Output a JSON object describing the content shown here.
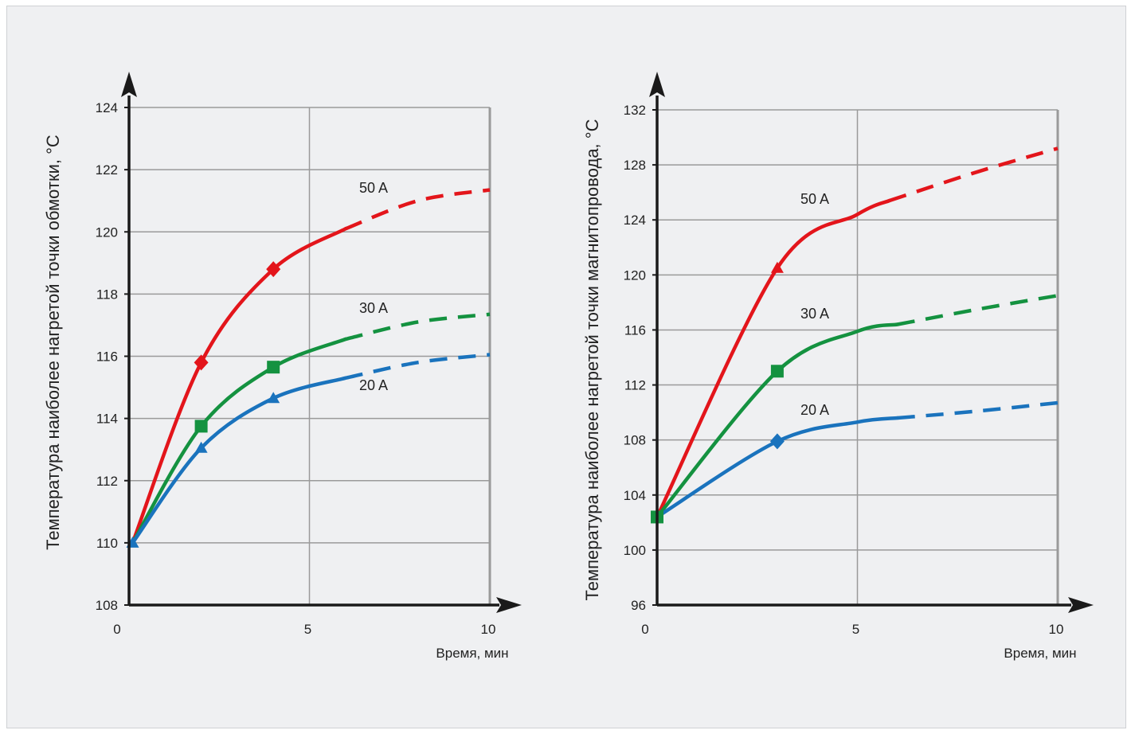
{
  "colors": {
    "s50": "#e3151b",
    "s30": "#149240",
    "s20": "#1a73bd",
    "grid": "#9a9a9a",
    "axis": "#1a1a1a"
  },
  "chart_data": [
    {
      "type": "line",
      "ylabel": "Температура наиболее нагретой точки обмотки, °C",
      "xlabel": "Время, мин",
      "xlim": [
        0,
        10
      ],
      "ylim": [
        108,
        124
      ],
      "xticks": [
        "0",
        "5",
        "10"
      ],
      "yticks": [
        "108",
        "110",
        "112",
        "114",
        "116",
        "118",
        "120",
        "122",
        "124"
      ],
      "grid": true,
      "series": [
        {
          "name": "50 A",
          "color": "#e3151b",
          "marker": "diamond",
          "solid": [
            [
              0.1,
              110
            ],
            [
              2,
              115.8
            ],
            [
              4,
              118.8
            ],
            [
              6,
              120.1
            ]
          ],
          "dashed": [
            [
              6,
              120.1
            ],
            [
              8,
              121
            ],
            [
              10,
              121.35
            ]
          ],
          "markers": [
            [
              2,
              115.8
            ],
            [
              4,
              118.8
            ]
          ]
        },
        {
          "name": "30 A",
          "color": "#149240",
          "marker": "square",
          "solid": [
            [
              0.1,
              110
            ],
            [
              2,
              113.75
            ],
            [
              4,
              115.65
            ],
            [
              6,
              116.55
            ]
          ],
          "dashed": [
            [
              6,
              116.55
            ],
            [
              8,
              117.1
            ],
            [
              10,
              117.35
            ]
          ],
          "markers": [
            [
              2,
              113.75
            ],
            [
              4,
              115.65
            ]
          ]
        },
        {
          "name": "20 A",
          "color": "#1a73bd",
          "marker": "triangle",
          "solid": [
            [
              0.1,
              110
            ],
            [
              2,
              113.05
            ],
            [
              4,
              114.65
            ],
            [
              6,
              115.3
            ]
          ],
          "dashed": [
            [
              6,
              115.3
            ],
            [
              8,
              115.8
            ],
            [
              10,
              116.05
            ]
          ],
          "markers": [
            [
              0.1,
              110
            ],
            [
              2,
              113.05
            ],
            [
              4,
              114.65
            ]
          ]
        }
      ]
    },
    {
      "type": "line",
      "ylabel": "Температура наиболее нагретой точки магнитопровода, °C",
      "xlabel": "Время, мин",
      "xlim": [
        0,
        10
      ],
      "ylim": [
        96,
        132
      ],
      "xticks": [
        "0",
        "5",
        "10"
      ],
      "yticks": [
        "96",
        "100",
        "104",
        "108",
        "112",
        "116",
        "120",
        "124",
        "128",
        "132"
      ],
      "grid": true,
      "series": [
        {
          "name": "50 A",
          "color": "#e3151b",
          "marker": "triangle",
          "solid": [
            [
              0,
              102.4
            ],
            [
              3,
              120.5
            ],
            [
              5,
              124.4
            ],
            [
              5.8,
              125.4
            ]
          ],
          "dashed": [
            [
              5.8,
              125.4
            ],
            [
              8,
              127.5
            ],
            [
              10,
              129.2
            ]
          ],
          "markers": [
            [
              0,
              102.4
            ],
            [
              3,
              120.5
            ]
          ]
        },
        {
          "name": "30 A",
          "color": "#149240",
          "marker": "square",
          "solid": [
            [
              0,
              102.4
            ],
            [
              3,
              113
            ],
            [
              5,
              115.9
            ],
            [
              6,
              116.4
            ]
          ],
          "dashed": [
            [
              6,
              116.4
            ],
            [
              8,
              117.5
            ],
            [
              10,
              118.5
            ]
          ],
          "markers": [
            [
              0,
              102.4
            ],
            [
              3,
              113
            ]
          ]
        },
        {
          "name": "20 A",
          "color": "#1a73bd",
          "marker": "diamond",
          "solid": [
            [
              0,
              102.4
            ],
            [
              3,
              107.9
            ],
            [
              5,
              109.3
            ],
            [
              6,
              109.6
            ]
          ],
          "dashed": [
            [
              6,
              109.6
            ],
            [
              8,
              110.1
            ],
            [
              10,
              110.7
            ]
          ],
          "markers": [
            [
              3,
              107.9
            ]
          ]
        }
      ]
    }
  ]
}
